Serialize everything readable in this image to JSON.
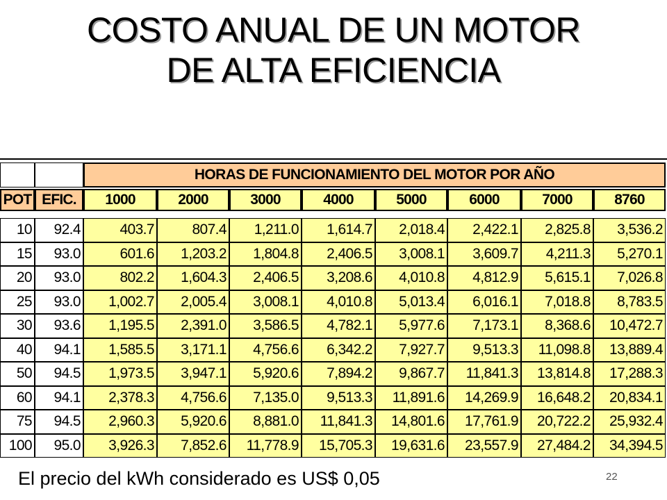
{
  "title": [
    "COSTO ANUAL DE UN MOTOR",
    "DE ALTA EFICIENCIA"
  ],
  "table": {
    "group_header": "HORAS DE FUNCIONAMIENTO DEL MOTOR POR AÑO",
    "col_pot": "POT",
    "col_efic": "EFIC.",
    "hours": [
      "1000",
      "2000",
      "3000",
      "4000",
      "5000",
      "6000",
      "7000",
      "8760"
    ],
    "rows": [
      {
        "pot": "10",
        "efic": "92.4",
        "values": [
          "403.7",
          "807.4",
          "1,211.0",
          "1,614.7",
          "2,018.4",
          "2,422.1",
          "2,825.8",
          "3,536.2"
        ]
      },
      {
        "pot": "15",
        "efic": "93.0",
        "values": [
          "601.6",
          "1,203.2",
          "1,804.8",
          "2,406.5",
          "3,008.1",
          "3,609.7",
          "4,211.3",
          "5,270.1"
        ]
      },
      {
        "pot": "20",
        "efic": "93.0",
        "values": [
          "802.2",
          "1,604.3",
          "2,406.5",
          "3,208.6",
          "4,010.8",
          "4,812.9",
          "5,615.1",
          "7,026.8"
        ]
      },
      {
        "pot": "25",
        "efic": "93.0",
        "values": [
          "1,002.7",
          "2,005.4",
          "3,008.1",
          "4,010.8",
          "5,013.4",
          "6,016.1",
          "7,018.8",
          "8,783.5"
        ]
      },
      {
        "pot": "30",
        "efic": "93.6",
        "values": [
          "1,195.5",
          "2,391.0",
          "3,586.5",
          "4,782.1",
          "5,977.6",
          "7,173.1",
          "8,368.6",
          "10,472.7"
        ]
      },
      {
        "pot": "40",
        "efic": "94.1",
        "values": [
          "1,585.5",
          "3,171.1",
          "4,756.6",
          "6,342.2",
          "7,927.7",
          "9,513.3",
          "11,098.8",
          "13,889.4"
        ]
      },
      {
        "pot": "50",
        "efic": "94.5",
        "values": [
          "1,973.5",
          "3,947.1",
          "5,920.6",
          "7,894.2",
          "9,867.7",
          "11,841.3",
          "13,814.8",
          "17,288.3"
        ]
      },
      {
        "pot": "60",
        "efic": "94.1",
        "values": [
          "2,378.3",
          "4,756.6",
          "7,135.0",
          "9,513.3",
          "11,891.6",
          "14,269.9",
          "16,648.2",
          "20,834.1"
        ]
      },
      {
        "pot": "75",
        "efic": "94.5",
        "values": [
          "2,960.3",
          "5,920.6",
          "8,881.0",
          "11,841.3",
          "14,801.6",
          "17,761.9",
          "20,722.2",
          "25,932.4"
        ]
      },
      {
        "pot": "100",
        "efic": "95.0",
        "values": [
          "3,926.3",
          "7,852.6",
          "11,778.9",
          "15,705.3",
          "19,631.6",
          "23,557.9",
          "27,484.2",
          "34,394.5"
        ]
      }
    ]
  },
  "footer_note": "El precio del kWh considerado es US$ 0,05",
  "page_number": "22",
  "colors": {
    "header_fill": "#ffcc99",
    "value_fill": "#ffffa0",
    "background": "#ffffff"
  }
}
